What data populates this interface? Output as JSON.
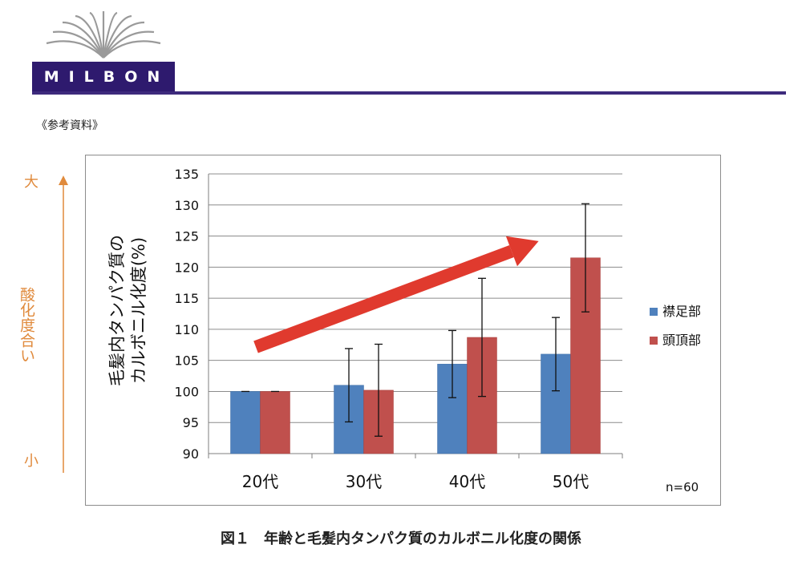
{
  "logo": {
    "text": "MILBON"
  },
  "reference_label": "《参考資料》",
  "side_axis": {
    "top_label": "大",
    "bottom_label": "小",
    "title": "酸化度合い"
  },
  "note": "n=60",
  "caption": "図１　年齢と毛髪内タンパク質のカルボニル化度の関係",
  "colors": {
    "series1": "#4f81bd",
    "series2": "#c0504d",
    "arrow": "#e03a2e",
    "side": "#e08a3c",
    "brand": "#2e1a6e"
  },
  "chart_data": {
    "type": "bar",
    "categories": [
      "20代",
      "30代",
      "40代",
      "50代"
    ],
    "ylabel_line1": "毛髪内タンパク質の",
    "ylabel_line2": "カルボニル化度(%)",
    "ylim": [
      90,
      135
    ],
    "yticks": [
      90,
      95,
      100,
      105,
      110,
      115,
      120,
      125,
      130,
      135
    ],
    "grid": true,
    "legend_position": "right",
    "series": [
      {
        "name": "襟足部",
        "values": [
          100,
          101,
          104.4,
          106
        ],
        "error": [
          0,
          5.9,
          5.4,
          5.9
        ]
      },
      {
        "name": "頭頂部",
        "values": [
          100,
          100.2,
          108.7,
          121.5
        ],
        "error": [
          0,
          7.4,
          9.5,
          8.7
        ]
      }
    ],
    "annotations": [
      "upward-trend-arrow"
    ]
  }
}
